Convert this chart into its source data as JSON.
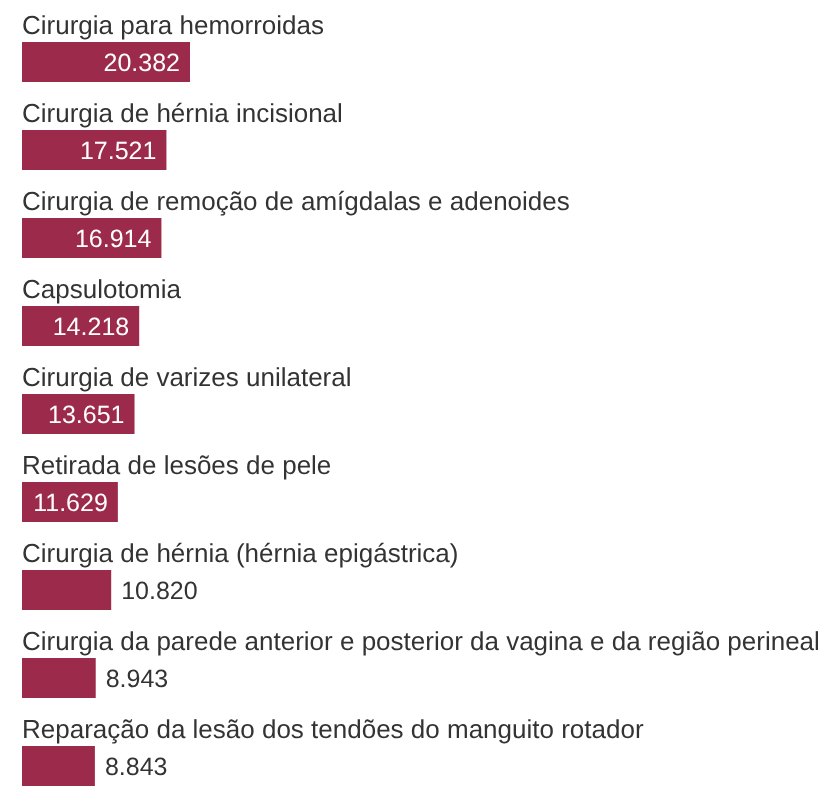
{
  "chart_data": {
    "type": "bar",
    "orientation": "horizontal",
    "categories": [
      "Cirurgia para hemorroidas",
      "Cirurgia de hérnia incisional",
      "Cirurgia de remoção de amígdalas e adenoides",
      "Capsulotomia",
      "Cirurgia de varizes unilateral",
      "Retirada de lesões de pele",
      "Cirurgia de hérnia (hérnia epigástrica)",
      "Cirurgia da parede anterior e posterior da vagina e da região perineal",
      "Reparação da lesão dos tendões do manguito rotador"
    ],
    "values": [
      20382,
      17521,
      16914,
      14218,
      13651,
      11629,
      10820,
      8943,
      8843
    ],
    "value_labels": [
      "20.382",
      "17.521",
      "16.914",
      "14.218",
      "13.651",
      "11.629",
      "10.820",
      "8.943",
      "8.843"
    ],
    "color": "#9c2a4a"
  }
}
